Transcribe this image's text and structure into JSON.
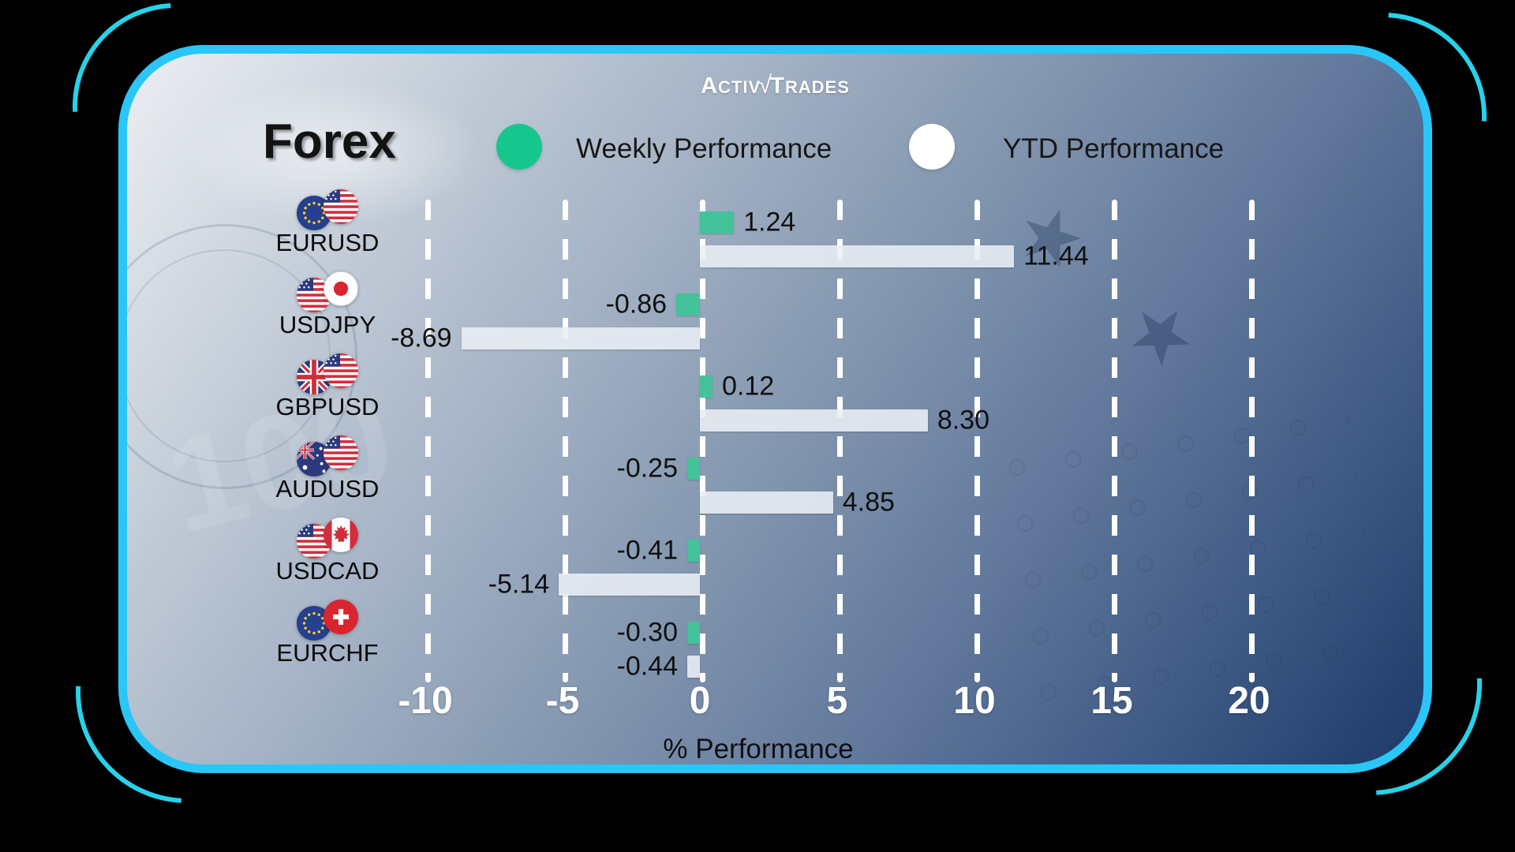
{
  "brand": {
    "logo_part1": "Activ",
    "logo_check": "√",
    "logo_part2": "Trades"
  },
  "title": "Forex",
  "legend": {
    "weekly": {
      "label": "Weekly Performance",
      "color": "#15c78c"
    },
    "ytd": {
      "label": "YTD Performance",
      "color": "#ffffff"
    }
  },
  "axis": {
    "ticks": [
      "-10",
      "-5",
      "0",
      "5",
      "10",
      "15",
      "20"
    ],
    "xlabel": "% Performance"
  },
  "rows": [
    {
      "pair": "EURUSD",
      "flags": [
        "eu-flag",
        "us-flag"
      ],
      "weekly_label": "1.24",
      "ytd_label": "11.44"
    },
    {
      "pair": "USDJPY",
      "flags": [
        "us-flag",
        "jp-flag"
      ],
      "weekly_label": "-0.86",
      "ytd_label": "-8.69"
    },
    {
      "pair": "GBPUSD",
      "flags": [
        "gb-flag",
        "us-flag"
      ],
      "weekly_label": "0.12",
      "ytd_label": "8.30"
    },
    {
      "pair": "AUDUSD",
      "flags": [
        "au-flag",
        "us-flag"
      ],
      "weekly_label": "-0.25",
      "ytd_label": "4.85"
    },
    {
      "pair": "USDCAD",
      "flags": [
        "us-flag",
        "ca-flag"
      ],
      "weekly_label": "-0.41",
      "ytd_label": "-5.14"
    },
    {
      "pair": "EURCHF",
      "flags": [
        "eu-flag",
        "ch-flag"
      ],
      "weekly_label": "-0.30",
      "ytd_label": "-0.44"
    }
  ],
  "chart_data": {
    "type": "bar",
    "orientation": "horizontal",
    "title": "Forex",
    "categories": [
      "EURUSD",
      "USDJPY",
      "GBPUSD",
      "AUDUSD",
      "USDCAD",
      "EURCHF"
    ],
    "series": [
      {
        "name": "Weekly Performance",
        "color": "#44c29a",
        "values": [
          1.24,
          -0.86,
          0.12,
          -0.25,
          -0.41,
          -0.3
        ]
      },
      {
        "name": "YTD Performance",
        "color": "#ebeff5",
        "values": [
          11.44,
          -8.69,
          8.3,
          4.85,
          -5.14,
          -0.44
        ]
      }
    ],
    "xticks": [
      -10,
      -5,
      0,
      5,
      10,
      15,
      20
    ],
    "xlim": [
      -12.4,
      22.6
    ],
    "xlabel": "% Performance",
    "grid": "vertical-dashed-white",
    "legend_position": "top",
    "value_labels": "outside-bar-end"
  },
  "colors": {
    "card_border": "#29c6f7",
    "background_outer": "#000000"
  }
}
